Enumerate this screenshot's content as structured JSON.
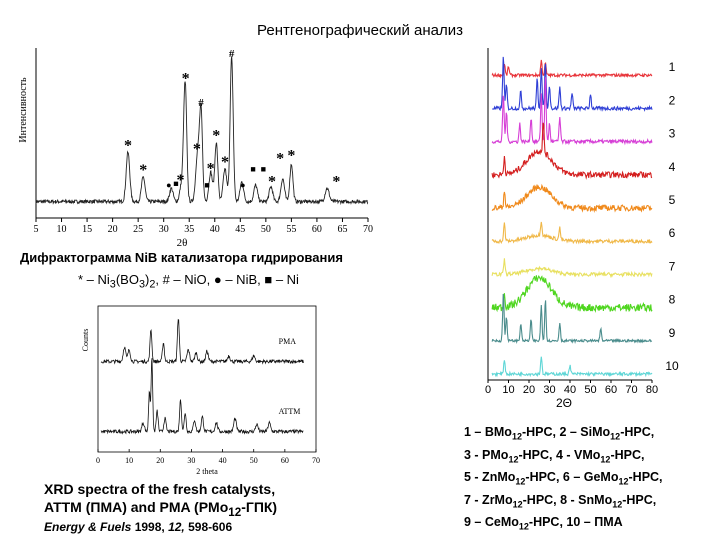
{
  "page": {
    "title": "Рентгенографический анализ",
    "nib_caption": "Дифрактограмма NiB катализатора гидрирования",
    "nib_legend": {
      "star": "*",
      "dash1": " – Ni",
      "sub3": "3",
      "bo": "(BO",
      "sub3b": "3",
      "close": ")",
      "sub2": "2",
      "rest": ", # – NiO, ● – NiB, ■ – Ni"
    },
    "xrd_caption_line1": "XRD spectra of the fresh catalysts,",
    "xrd_caption_line2": "ATTM (ПМА) and PMA (PMo",
    "xrd_caption_sub": "12",
    "xrd_caption_line2_end": "-ГПК)",
    "ref_journal": "Energy & Fuels",
    "ref_year": "1998,",
    "ref_volume": "12,",
    "ref_pages": "598-606",
    "hpc_caption": [
      {
        "a": "1 – BMo",
        "s": "12",
        "b": "-HPC, 2 – SiMo",
        "s2": "12",
        "c": "-HPC,"
      },
      {
        "a": "3 - PMo",
        "s": "12",
        "b": "-HPC, 4 - VMo",
        "s2": "12",
        "c": "-HPC,"
      },
      {
        "a": "5 - ZnMo",
        "s": "12",
        "b": "-HPC, 6 – GeMo",
        "s2": "12",
        "c": "-HPC,"
      },
      {
        "a": "7 - ZrMo",
        "s": "12",
        "b": "-HPC, 8 - SnMo",
        "s2": "12",
        "c": "-HPC,"
      },
      {
        "a": "9 – CeMo",
        "s": "12",
        "b": "-HPC,  10 – ПМА",
        "s2": "",
        "c": ""
      }
    ]
  },
  "chart_data": [
    {
      "id": "nib",
      "type": "line",
      "title": "",
      "xlabel": "2θ",
      "ylabel": "Интенсивность",
      "xlim": [
        5,
        70
      ],
      "ylim": [
        0,
        100
      ],
      "xticks": [
        5,
        10,
        15,
        20,
        25,
        30,
        35,
        40,
        45,
        50,
        55,
        60,
        65,
        70
      ],
      "baseline": 10,
      "peaks": [
        {
          "x": 23.0,
          "h": 30,
          "w": 0.35
        },
        {
          "x": 26.0,
          "h": 15,
          "w": 0.35
        },
        {
          "x": 31.5,
          "h": 8,
          "w": 0.35
        },
        {
          "x": 33.5,
          "h": 10,
          "w": 0.35
        },
        {
          "x": 34.2,
          "h": 72,
          "w": 0.3
        },
        {
          "x": 36.6,
          "h": 28,
          "w": 0.35
        },
        {
          "x": 37.3,
          "h": 55,
          "w": 0.3
        },
        {
          "x": 39.2,
          "h": 18,
          "w": 0.35
        },
        {
          "x": 40.3,
          "h": 36,
          "w": 0.3
        },
        {
          "x": 42.0,
          "h": 20,
          "w": 0.35
        },
        {
          "x": 43.3,
          "h": 88,
          "w": 0.3
        },
        {
          "x": 45.3,
          "h": 12,
          "w": 0.35
        },
        {
          "x": 48.0,
          "h": 10,
          "w": 0.35
        },
        {
          "x": 51.0,
          "h": 9,
          "w": 0.35
        },
        {
          "x": 53.3,
          "h": 14,
          "w": 0.35
        },
        {
          "x": 55.0,
          "h": 23,
          "w": 0.3
        },
        {
          "x": 62.0,
          "h": 8,
          "w": 0.4
        }
      ],
      "annotations": [
        {
          "x": 23.0,
          "y": 46,
          "sym": "*"
        },
        {
          "x": 26.0,
          "y": 31,
          "sym": "*"
        },
        {
          "x": 31.0,
          "y": 20,
          "sym": "●"
        },
        {
          "x": 32.4,
          "y": 21,
          "sym": "■"
        },
        {
          "x": 33.3,
          "y": 25,
          "sym": "*"
        },
        {
          "x": 34.3,
          "y": 87,
          "sym": "*"
        },
        {
          "x": 37.3,
          "y": 70,
          "sym": "#"
        },
        {
          "x": 36.5,
          "y": 44,
          "sym": "*"
        },
        {
          "x": 38.5,
          "y": 20,
          "sym": "■"
        },
        {
          "x": 39.2,
          "y": 32,
          "sym": "*"
        },
        {
          "x": 40.3,
          "y": 52,
          "sym": "*"
        },
        {
          "x": 42.0,
          "y": 36,
          "sym": "*"
        },
        {
          "x": 43.3,
          "y": 100,
          "sym": "#"
        },
        {
          "x": 45.5,
          "y": 20,
          "sym": "●"
        },
        {
          "x": 47.5,
          "y": 30,
          "sym": "■"
        },
        {
          "x": 49.5,
          "y": 30,
          "sym": "■"
        },
        {
          "x": 51.2,
          "y": 24,
          "sym": "*"
        },
        {
          "x": 52.8,
          "y": 38,
          "sym": "*"
        },
        {
          "x": 55.0,
          "y": 40,
          "sym": "*"
        },
        {
          "x": 63.8,
          "y": 24,
          "sym": "*"
        }
      ]
    },
    {
      "id": "attm",
      "type": "line",
      "xlabel": "2 theta",
      "ylabel": "Counts",
      "xlim": [
        0,
        70
      ],
      "xticks": [
        0,
        10,
        20,
        30,
        40,
        50,
        60,
        70
      ],
      "series": [
        {
          "name": "PMA",
          "baseline": 62,
          "peaks": [
            {
              "x": 8.5,
              "h": 10,
              "w": 0.4
            },
            {
              "x": 10.0,
              "h": 8,
              "w": 0.4
            },
            {
              "x": 17.0,
              "h": 22,
              "w": 0.3
            },
            {
              "x": 21.0,
              "h": 13,
              "w": 0.3
            },
            {
              "x": 25.8,
              "h": 30,
              "w": 0.3
            },
            {
              "x": 29.0,
              "h": 8,
              "w": 0.4
            },
            {
              "x": 31.5,
              "h": 6,
              "w": 0.4
            },
            {
              "x": 35.0,
              "h": 7,
              "w": 0.4
            },
            {
              "x": 42.0,
              "h": 4,
              "w": 0.4
            },
            {
              "x": 50.0,
              "h": 4,
              "w": 0.4
            }
          ]
        },
        {
          "name": "ATTM",
          "baseline": 14,
          "peaks": [
            {
              "x": 14.5,
              "h": 6,
              "w": 0.4
            },
            {
              "x": 16.5,
              "h": 28,
              "w": 0.25
            },
            {
              "x": 17.3,
              "h": 50,
              "w": 0.25
            },
            {
              "x": 19.0,
              "h": 14,
              "w": 0.3
            },
            {
              "x": 21.5,
              "h": 9,
              "w": 0.35
            },
            {
              "x": 26.5,
              "h": 22,
              "w": 0.3
            },
            {
              "x": 28.0,
              "h": 13,
              "w": 0.3
            },
            {
              "x": 31.0,
              "h": 8,
              "w": 0.35
            },
            {
              "x": 33.5,
              "h": 10,
              "w": 0.35
            },
            {
              "x": 38.0,
              "h": 6,
              "w": 0.4
            },
            {
              "x": 44.0,
              "h": 9,
              "w": 0.4
            },
            {
              "x": 51.0,
              "h": 5,
              "w": 0.4
            },
            {
              "x": 55.0,
              "h": 6,
              "w": 0.4
            }
          ]
        }
      ]
    },
    {
      "id": "hpc",
      "type": "line",
      "xlabel": "2Θ",
      "xlim": [
        0,
        80
      ],
      "xticks": [
        0,
        10,
        20,
        30,
        40,
        50,
        60,
        70,
        80
      ],
      "series": [
        {
          "name": "1",
          "color": "#e8343a",
          "noise": 1.0,
          "hump": 0,
          "peaks": [
            {
              "x": 8,
              "h": 4
            },
            {
              "x": 10,
              "h": 3
            },
            {
              "x": 26,
              "h": 5
            },
            {
              "x": 28,
              "h": 4
            }
          ]
        },
        {
          "name": "2",
          "color": "#2f3fd6",
          "noise": 1.2,
          "hump": 0,
          "peaks": [
            {
              "x": 7.5,
              "h": 18
            },
            {
              "x": 9,
              "h": 8
            },
            {
              "x": 16,
              "h": 6
            },
            {
              "x": 24,
              "h": 10
            },
            {
              "x": 26,
              "h": 14
            },
            {
              "x": 28,
              "h": 16
            },
            {
              "x": 30,
              "h": 8
            },
            {
              "x": 35,
              "h": 7
            },
            {
              "x": 41,
              "h": 5
            },
            {
              "x": 50,
              "h": 5
            }
          ]
        },
        {
          "name": "3",
          "color": "#d63fd6",
          "noise": 1.2,
          "hump": 0,
          "peaks": [
            {
              "x": 7.5,
              "h": 16
            },
            {
              "x": 9,
              "h": 10
            },
            {
              "x": 15.5,
              "h": 6
            },
            {
              "x": 21,
              "h": 8
            },
            {
              "x": 26,
              "h": 16
            },
            {
              "x": 28,
              "h": 22
            },
            {
              "x": 30,
              "h": 6
            },
            {
              "x": 35,
              "h": 8
            }
          ]
        },
        {
          "name": "4",
          "color": "#d41f1f",
          "noise": 2.0,
          "hump": 8,
          "peaks": [
            {
              "x": 8,
              "h": 6
            },
            {
              "x": 27,
              "h": 10
            }
          ]
        },
        {
          "name": "5",
          "color": "#f08a1c",
          "noise": 2.0,
          "hump": 7,
          "peaks": [
            {
              "x": 8,
              "h": 6
            }
          ]
        },
        {
          "name": "6",
          "color": "#f0b848",
          "noise": 1.2,
          "hump": 2,
          "peaks": [
            {
              "x": 8,
              "h": 6
            },
            {
              "x": 26,
              "h": 5
            },
            {
              "x": 35,
              "h": 4
            }
          ]
        },
        {
          "name": "7",
          "color": "#e8e060",
          "noise": 1.2,
          "hump": 2,
          "peaks": [
            {
              "x": 8,
              "h": 5
            }
          ]
        },
        {
          "name": "8",
          "color": "#4fd61f",
          "noise": 2.6,
          "hump": 10,
          "peaks": [
            {
              "x": 8,
              "h": 5
            }
          ]
        },
        {
          "name": "9",
          "color": "#4a8c8c",
          "noise": 0.8,
          "hump": 0,
          "peaks": [
            {
              "x": 7.5,
              "h": 16
            },
            {
              "x": 9,
              "h": 8
            },
            {
              "x": 16,
              "h": 6
            },
            {
              "x": 21,
              "h": 7
            },
            {
              "x": 26,
              "h": 12
            },
            {
              "x": 28,
              "h": 14
            },
            {
              "x": 35,
              "h": 6
            },
            {
              "x": 55,
              "h": 4
            }
          ]
        },
        {
          "name": "10",
          "color": "#5fd6d6",
          "noise": 1.0,
          "hump": 0,
          "peaks": [
            {
              "x": 8,
              "h": 5
            },
            {
              "x": 26,
              "h": 6
            },
            {
              "x": 40,
              "h": 3
            }
          ]
        }
      ]
    }
  ]
}
